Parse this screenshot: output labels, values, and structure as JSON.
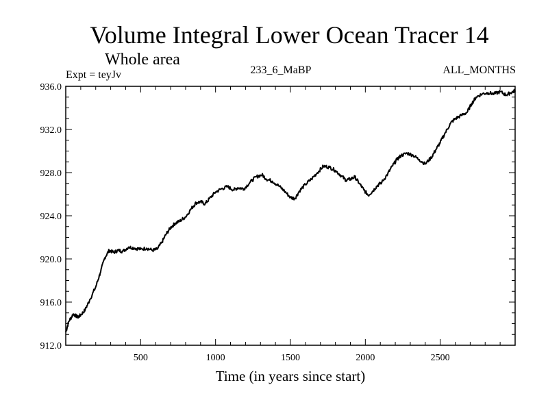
{
  "chart_data": {
    "type": "line",
    "title": "Volume Integral Lower Ocean Tracer 14",
    "subtitle": "Whole area",
    "experiment_label": "Expt = teyJv",
    "experiment_name": "233_6_MaBP",
    "period": "ALL_MONTHS",
    "xlabel": "Time (in years since start)",
    "ylabel": "",
    "xlim": [
      0,
      3000
    ],
    "ylim": [
      912.0,
      936.0
    ],
    "x_ticks": [
      500,
      1000,
      1500,
      2000,
      2500
    ],
    "x_tick_labels": [
      "500",
      "1000",
      "1500",
      "2000",
      "2500"
    ],
    "y_ticks": [
      912.0,
      916.0,
      920.0,
      924.0,
      928.0,
      932.0,
      936.0
    ],
    "y_tick_labels": [
      "912.0",
      "916.0",
      "920.0",
      "924.0",
      "928.0",
      "932.0",
      "936.0"
    ],
    "series": [
      {
        "name": "Lower Ocean Tracer 14",
        "x": [
          0,
          20,
          50,
          80,
          100,
          130,
          160,
          200,
          230,
          260,
          290,
          320,
          350,
          380,
          420,
          460,
          500,
          540,
          580,
          610,
          640,
          670,
          700,
          730,
          760,
          800,
          840,
          870,
          900,
          930,
          960,
          1000,
          1040,
          1080,
          1120,
          1150,
          1190,
          1230,
          1270,
          1310,
          1340,
          1380,
          1420,
          1460,
          1500,
          1530,
          1560,
          1600,
          1640,
          1680,
          1720,
          1760,
          1800,
          1840,
          1870,
          1900,
          1930,
          1960,
          1990,
          2020,
          2050,
          2080,
          2110,
          2150,
          2180,
          2210,
          2240,
          2280,
          2320,
          2360,
          2400,
          2440,
          2470,
          2500,
          2530,
          2570,
          2600,
          2640,
          2680,
          2710,
          2740,
          2780,
          2820,
          2860,
          2900,
          2940,
          2970,
          3000
        ],
        "values": [
          913.2,
          914.2,
          914.9,
          914.6,
          914.8,
          915.3,
          916.2,
          917.4,
          918.7,
          920.1,
          920.8,
          920.6,
          920.8,
          920.7,
          921.1,
          921.0,
          920.9,
          921.0,
          920.8,
          920.9,
          921.5,
          922.3,
          922.9,
          923.3,
          923.5,
          923.9,
          924.7,
          925.2,
          925.3,
          925.1,
          925.6,
          926.2,
          926.5,
          926.7,
          926.4,
          926.6,
          926.5,
          927.1,
          927.6,
          927.8,
          927.4,
          927.2,
          926.8,
          926.3,
          925.7,
          925.6,
          926.3,
          926.9,
          927.4,
          928.0,
          928.6,
          928.5,
          928.2,
          927.7,
          927.3,
          927.4,
          927.6,
          927.0,
          926.4,
          925.9,
          926.3,
          926.8,
          927.1,
          927.9,
          928.6,
          929.2,
          929.6,
          929.8,
          929.6,
          929.2,
          928.8,
          929.4,
          930.1,
          930.8,
          931.6,
          932.6,
          933.0,
          933.3,
          933.6,
          934.4,
          935.0,
          935.3,
          935.4,
          935.3,
          935.5,
          935.2,
          935.4,
          935.6
        ]
      }
    ]
  }
}
